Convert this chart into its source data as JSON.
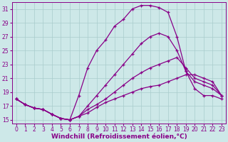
{
  "background_color": "#cde8e8",
  "grid_color": "#a8cccc",
  "line_color": "#880088",
  "xlim": [
    0,
    23
  ],
  "ylim": [
    14.5,
    32.0
  ],
  "xticks": [
    0,
    1,
    2,
    3,
    4,
    5,
    6,
    7,
    8,
    9,
    10,
    11,
    12,
    13,
    14,
    15,
    16,
    17,
    18,
    19,
    20,
    21,
    22,
    23
  ],
  "yticks": [
    15,
    17,
    19,
    21,
    23,
    25,
    27,
    29,
    31
  ],
  "curve1_x": [
    0,
    1,
    2,
    3,
    4,
    5,
    6,
    7,
    8,
    9,
    10,
    11,
    12,
    13,
    14,
    15,
    16,
    17,
    18,
    19,
    20,
    21,
    22,
    23
  ],
  "curve1_y": [
    18.0,
    17.2,
    16.7,
    16.5,
    15.8,
    15.2,
    15.0,
    15.5,
    16.5,
    17.2,
    18.0,
    19.0,
    20.0,
    21.0,
    21.8,
    22.5,
    23.0,
    23.5,
    24.0,
    22.5,
    21.0,
    20.5,
    20.0,
    18.5
  ],
  "curve2_x": [
    0,
    1,
    2,
    3,
    4,
    5,
    6,
    7,
    8,
    9,
    10,
    11,
    12,
    13,
    14,
    15,
    16,
    17,
    18,
    19,
    20,
    21,
    22,
    23
  ],
  "curve2_y": [
    18.0,
    17.2,
    16.7,
    16.5,
    15.8,
    15.2,
    15.0,
    15.5,
    17.0,
    18.5,
    20.0,
    21.5,
    23.0,
    24.5,
    26.0,
    27.0,
    27.5,
    27.0,
    25.0,
    22.0,
    20.5,
    20.0,
    19.5,
    18.5
  ],
  "curve3_x": [
    0,
    1,
    2,
    3,
    4,
    5,
    6,
    7,
    8,
    9,
    10,
    11,
    12,
    13,
    14,
    15,
    16,
    17,
    18,
    19,
    20,
    21,
    22,
    23
  ],
  "curve3_y": [
    18.0,
    17.2,
    16.7,
    16.5,
    15.8,
    15.2,
    15.0,
    18.5,
    22.5,
    25.0,
    26.5,
    28.5,
    29.5,
    31.0,
    31.5,
    31.5,
    31.2,
    30.5,
    27.0,
    22.0,
    19.5,
    18.5,
    18.5,
    18.0
  ],
  "curve4_x": [
    0,
    1,
    2,
    3,
    4,
    5,
    6,
    7,
    8,
    9,
    10,
    11,
    12,
    13,
    14,
    15,
    16,
    17,
    18,
    19,
    20,
    21,
    22,
    23
  ],
  "curve4_y": [
    18.0,
    17.2,
    16.7,
    16.5,
    15.8,
    15.2,
    15.0,
    15.5,
    16.0,
    16.8,
    17.5,
    18.0,
    18.5,
    19.0,
    19.5,
    19.8,
    20.0,
    20.5,
    21.0,
    21.5,
    21.5,
    21.0,
    20.5,
    18.5
  ],
  "xlabel": "Windchill (Refroidissement éolien,°C)",
  "tick_fontsize": 5.5,
  "xlabel_fontsize": 6.5
}
